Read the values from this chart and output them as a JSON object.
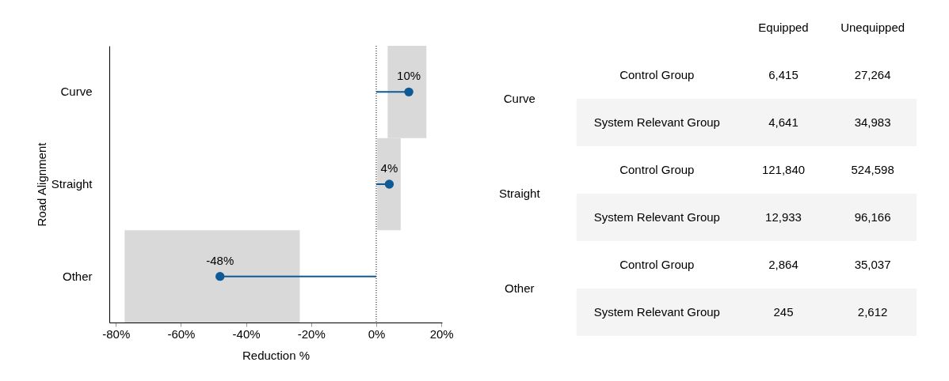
{
  "chart_data": [
    {
      "type": "lollipop",
      "orientation": "horizontal",
      "xlabel": "Reduction %",
      "ylabel": "Road Alignment",
      "categories": [
        "Curve",
        "Straight",
        "Other"
      ],
      "series": [
        {
          "color": "#0e5a97",
          "values": [
            10,
            4,
            -48
          ],
          "value_labels": [
            "10%",
            "4%",
            "-48%"
          ],
          "errors": [
            [
              3.5,
              15.4
            ],
            [
              0.3,
              7.5
            ],
            [
              -77.3,
              -23.5
            ]
          ]
        }
      ],
      "xlim": [
        -82,
        20.2
      ],
      "xticks": [
        {
          "value": -80,
          "label": "-80%"
        },
        {
          "value": -60,
          "label": "-60%"
        },
        {
          "value": -40,
          "label": "-40%"
        },
        {
          "value": -20,
          "label": "-20%"
        },
        {
          "value": 0,
          "label": "0%"
        },
        {
          "value": 20,
          "label": "20%"
        }
      ],
      "ref_lines": [
        {
          "axis": "x",
          "value": 0,
          "line_style": "dotted",
          "color": "#000000"
        }
      ],
      "marker": "circle",
      "grid": false
    },
    {
      "type": "other",
      "categories": [
        "Equipped",
        "Unequipped"
      ],
      "y_categories": [
        "Control Group",
        "System Relevant Group",
        "Control Group",
        "System Relevant Group",
        "Control Group",
        "System Relevant Group"
      ],
      "cell_labels": [
        [
          "6,415",
          "27,264"
        ],
        [
          "4,641",
          "34,983"
        ],
        [
          "121,840",
          "524,598"
        ],
        [
          "12,933",
          "96,166"
        ],
        [
          "2,864",
          "35,037"
        ],
        [
          "245",
          "2,612"
        ]
      ],
      "annotations": [
        "Curve",
        "Straight",
        "Other"
      ]
    }
  ]
}
